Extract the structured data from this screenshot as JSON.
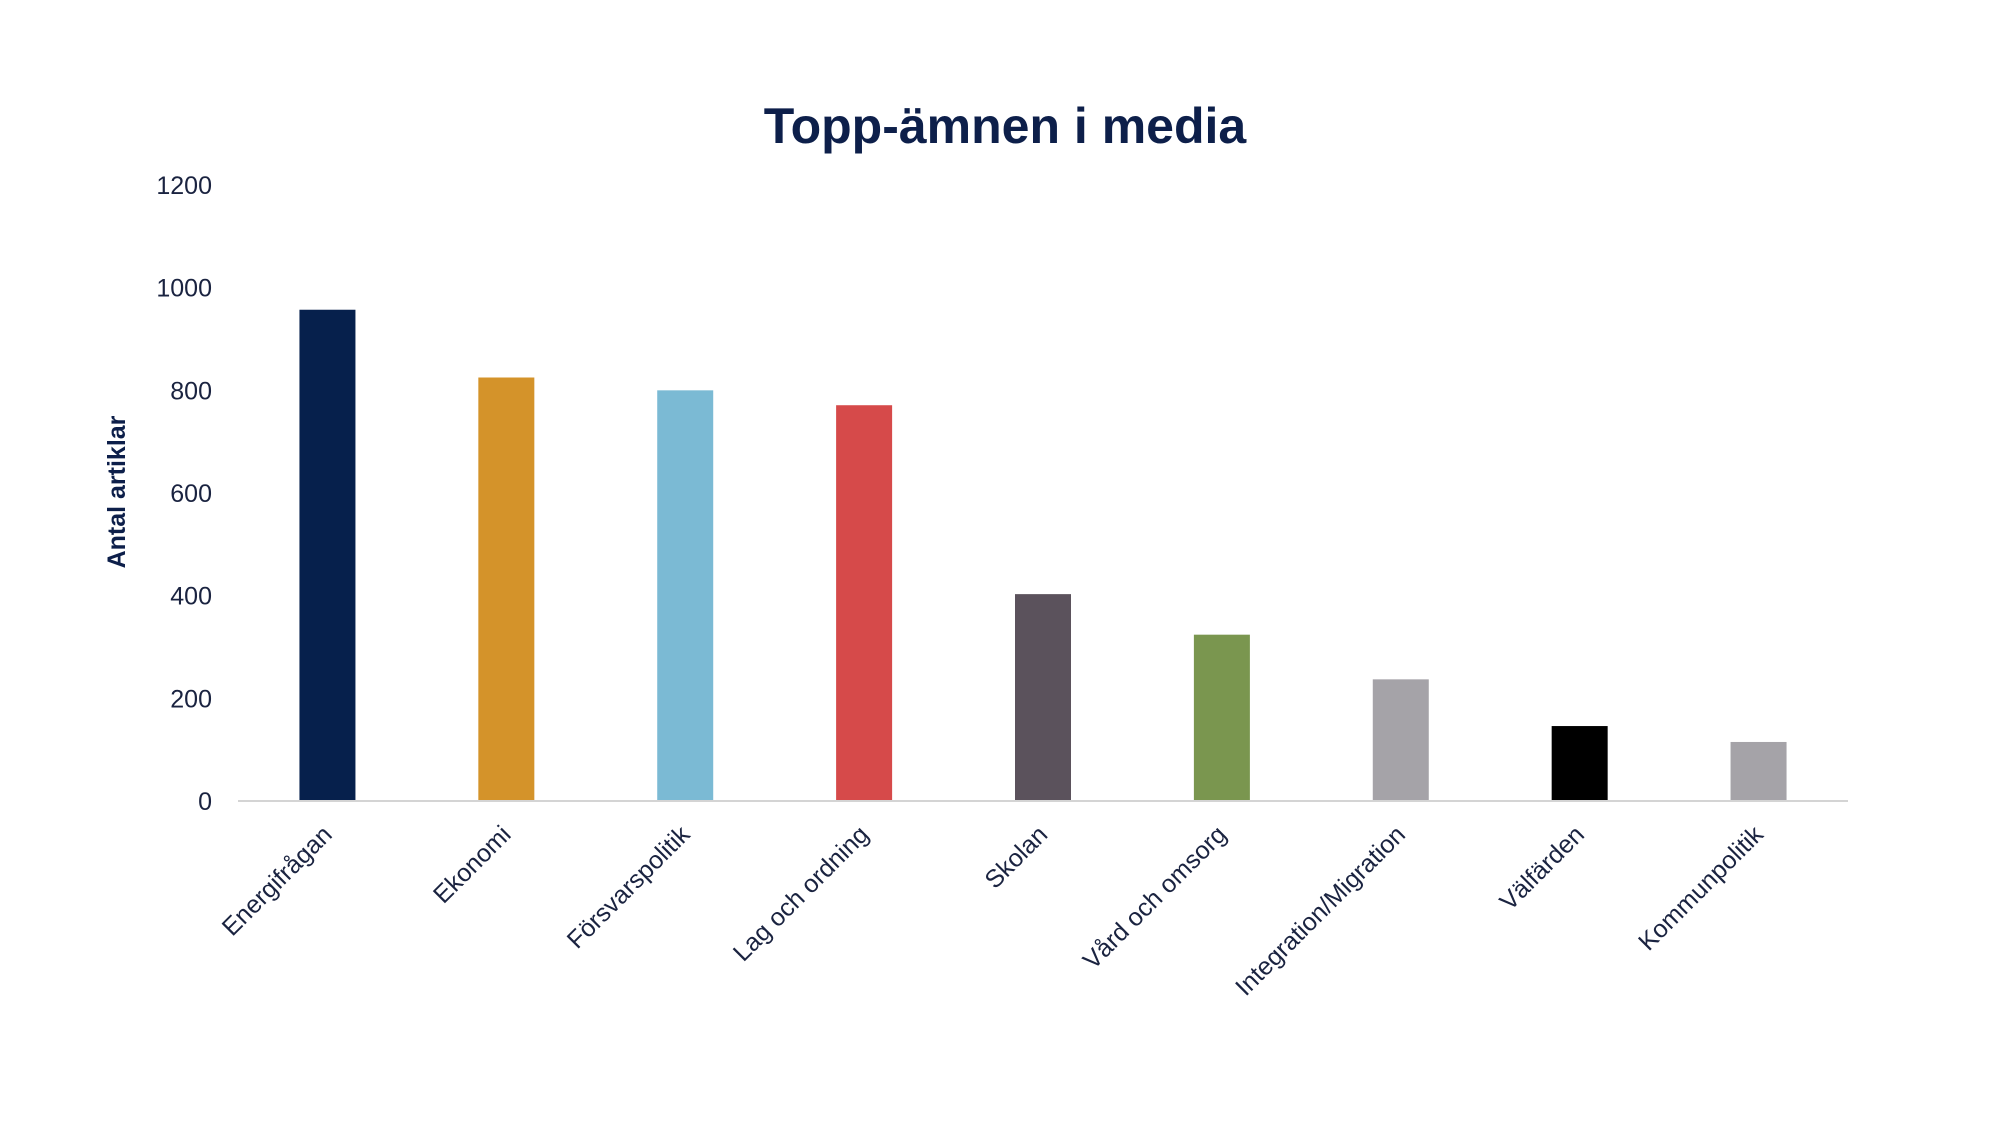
{
  "chart_data": {
    "type": "bar",
    "title": "Topp-ämnen i media",
    "xlabel": "",
    "ylabel": "Antal artiklar",
    "ylim": [
      0,
      1200
    ],
    "yticks": [
      0,
      200,
      400,
      600,
      800,
      1000,
      1200
    ],
    "grid": false,
    "legend": "none",
    "categories": [
      "Energifrågan",
      "Ekonomi",
      "Försvarspolitik",
      "Lag och ordning",
      "Skolan",
      "Vård och omsorg",
      "Integration/Migration",
      "Välfärden",
      "Kommunpolitik"
    ],
    "values": [
      957,
      825,
      800,
      771,
      403,
      324,
      237,
      146,
      115
    ],
    "colors": [
      "#06204c",
      "#d4932a",
      "#7bbad4",
      "#d64a4a",
      "#5b525c",
      "#7a964f",
      "#a5a3a8",
      "#000000",
      "#a5a3a8"
    ]
  }
}
